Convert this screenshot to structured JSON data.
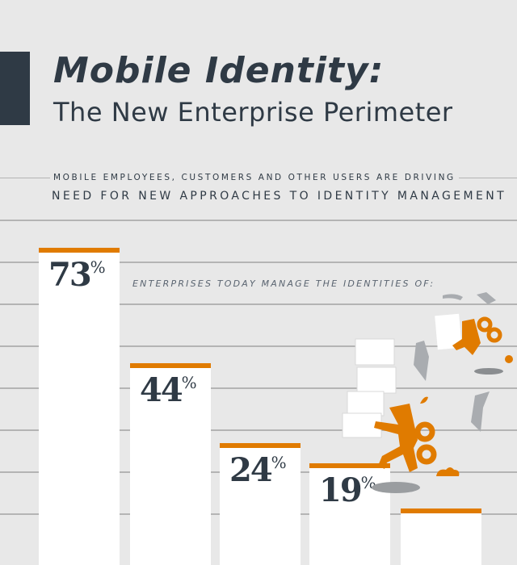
{
  "header": {
    "title": "Mobile Identity:",
    "subtitle": "The New Enterprise Perimeter"
  },
  "intro": {
    "line1": "MOBILE EMPLOYEES, CUSTOMERS AND OTHER USERS ARE DRIVING",
    "line2": "NEED FOR NEW APPROACHES TO IDENTITY MANAGEMENT"
  },
  "colors": {
    "background": "#e8e8e8",
    "text": "#2f3a45",
    "accent": "#e07b00",
    "bar": "#ffffff"
  },
  "chart_data": {
    "type": "bar",
    "title": "ENTERPRISES TODAY MANAGE THE IDENTITIES OF:",
    "values": [
      73,
      44,
      24,
      19,
      null
    ],
    "labels": [
      "73",
      "44",
      "24",
      "19",
      ""
    ],
    "unit": "%",
    "ylim": [
      0,
      100
    ],
    "grid": true
  },
  "illustration": {
    "icons": [
      "running-windup-man-with-papers-icon",
      "flying-papers-icon"
    ]
  }
}
